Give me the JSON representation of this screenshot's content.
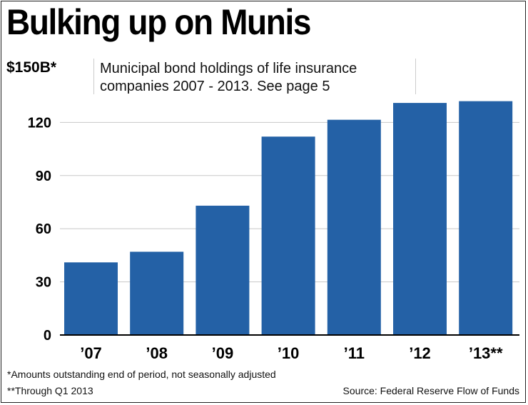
{
  "title": "Bulking up on Munis",
  "ymax_label": "$150B*",
  "subtitle": "Municipal bond holdings of life insurance companies 2007 - 2013. See page 5",
  "footnotes": {
    "note1": "*Amounts outstanding end of period, not seasonally adjusted",
    "note2": "**Through Q1 2013",
    "source": "Source: Federal Reserve Flow of Funds"
  },
  "colors": {
    "bar": "#2461a6",
    "grid": "#c8c8c8",
    "axis": "#000000"
  },
  "chart_data": {
    "type": "bar",
    "title": "Bulking up on Munis",
    "subtitle": "Municipal bond holdings of life insurance companies 2007 - 2013. See page 5",
    "ylabel": "$150B*",
    "categories": [
      "’07",
      "’08",
      "’09",
      "’10",
      "’11",
      "’12",
      "’13**"
    ],
    "values": [
      41,
      47,
      73,
      112,
      121.5,
      131,
      132
    ],
    "ylim": [
      0,
      150
    ],
    "yticks": [
      "0",
      "30",
      "60",
      "90",
      "120"
    ],
    "ytick_values": [
      0,
      30,
      60,
      90,
      120
    ],
    "grid": true
  }
}
